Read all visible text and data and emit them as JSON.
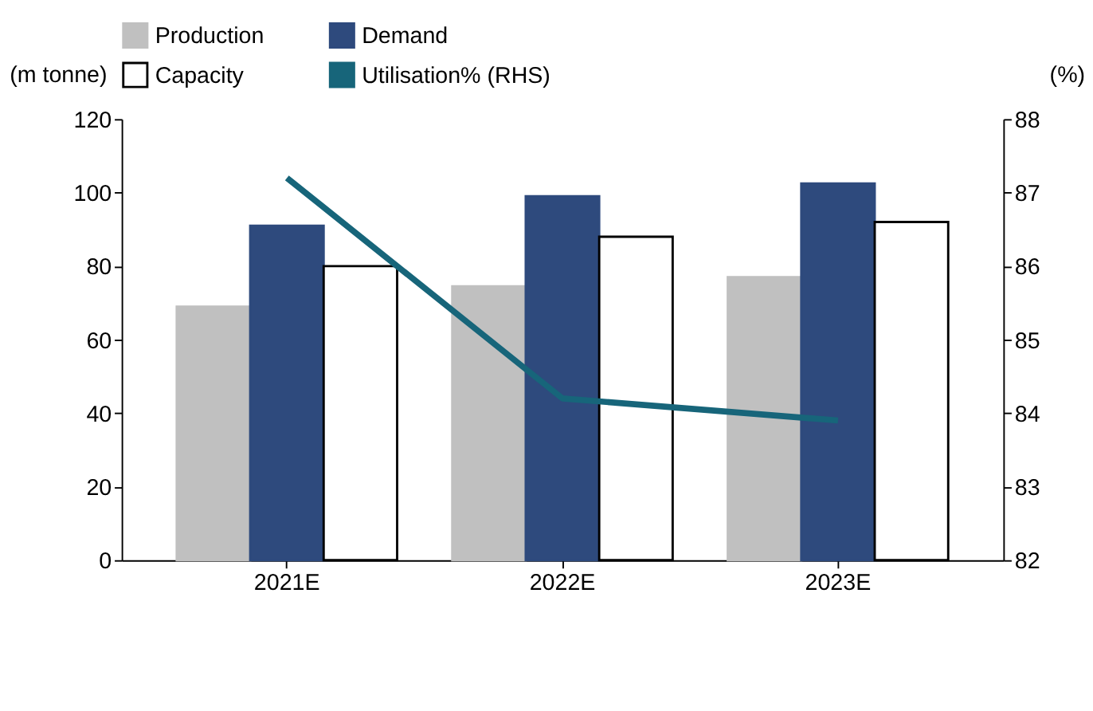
{
  "chart_data": {
    "type": "bar",
    "ylabel": "(m tonne)",
    "y2label": "(%)",
    "categories": [
      "2021E",
      "2022E",
      "2023E"
    ],
    "series": [
      {
        "name": "Production",
        "color": "#c0c0c0",
        "values": [
          69,
          74.5,
          77
        ]
      },
      {
        "name": "Demand",
        "color": "#2e4a7d",
        "values": [
          91,
          99,
          102.5
        ]
      },
      {
        "name": "Capacity",
        "color": "#ffffff",
        "values": [
          80,
          88,
          92
        ]
      },
      {
        "name": "Utilisation% (RHS)",
        "type": "line",
        "axis": "y2",
        "color": "#17657a",
        "values": [
          87.2,
          84.2,
          83.9
        ]
      }
    ],
    "ylim": [
      0,
      120
    ],
    "yticks": [
      0,
      20,
      40,
      60,
      80,
      100,
      120
    ],
    "y2lim": [
      82,
      88
    ],
    "y2ticks": [
      82,
      83,
      84,
      85,
      86,
      87,
      88
    ],
    "grid": false,
    "legend": "top",
    "marker": "none",
    "line_style": "solid"
  }
}
